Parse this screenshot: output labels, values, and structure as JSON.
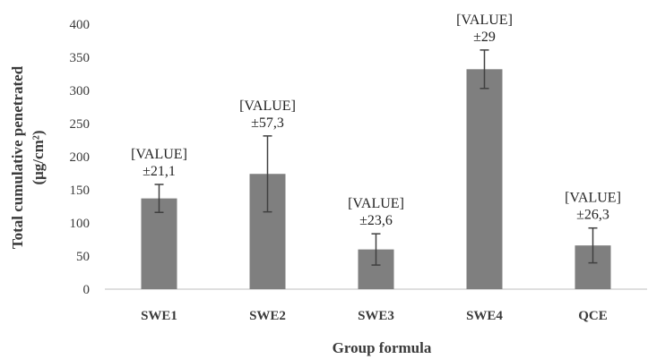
{
  "chart_data": {
    "type": "bar",
    "categories": [
      "SWE1",
      "SWE2",
      "SWE3",
      "SWE4",
      "QCE"
    ],
    "values": [
      137,
      174,
      60,
      332,
      66
    ],
    "errors": [
      21.1,
      57.3,
      23.6,
      29,
      26.3
    ],
    "data_labels": [
      {
        "value": "[VALUE]",
        "error": "±21,1"
      },
      {
        "value": "[VALUE]",
        "error": "±57,3"
      },
      {
        "value": "[VALUE]",
        "error": "±23,6"
      },
      {
        "value": "[VALUE]",
        "error": "±29"
      },
      {
        "value": "[VALUE]",
        "error": "±26,3"
      }
    ],
    "xlabel": "Group formula",
    "ylabel_line1": "Total cumulative penetrated",
    "ylabel_line2": "(μg/cm²)",
    "ylim": [
      0,
      400
    ],
    "yticks": [
      0,
      50,
      100,
      150,
      200,
      250,
      300,
      350,
      400
    ],
    "grid": false,
    "colors": {
      "bar": "#7f7f7f",
      "error_bar": "#404040",
      "axis": "#bfbfbf"
    }
  }
}
